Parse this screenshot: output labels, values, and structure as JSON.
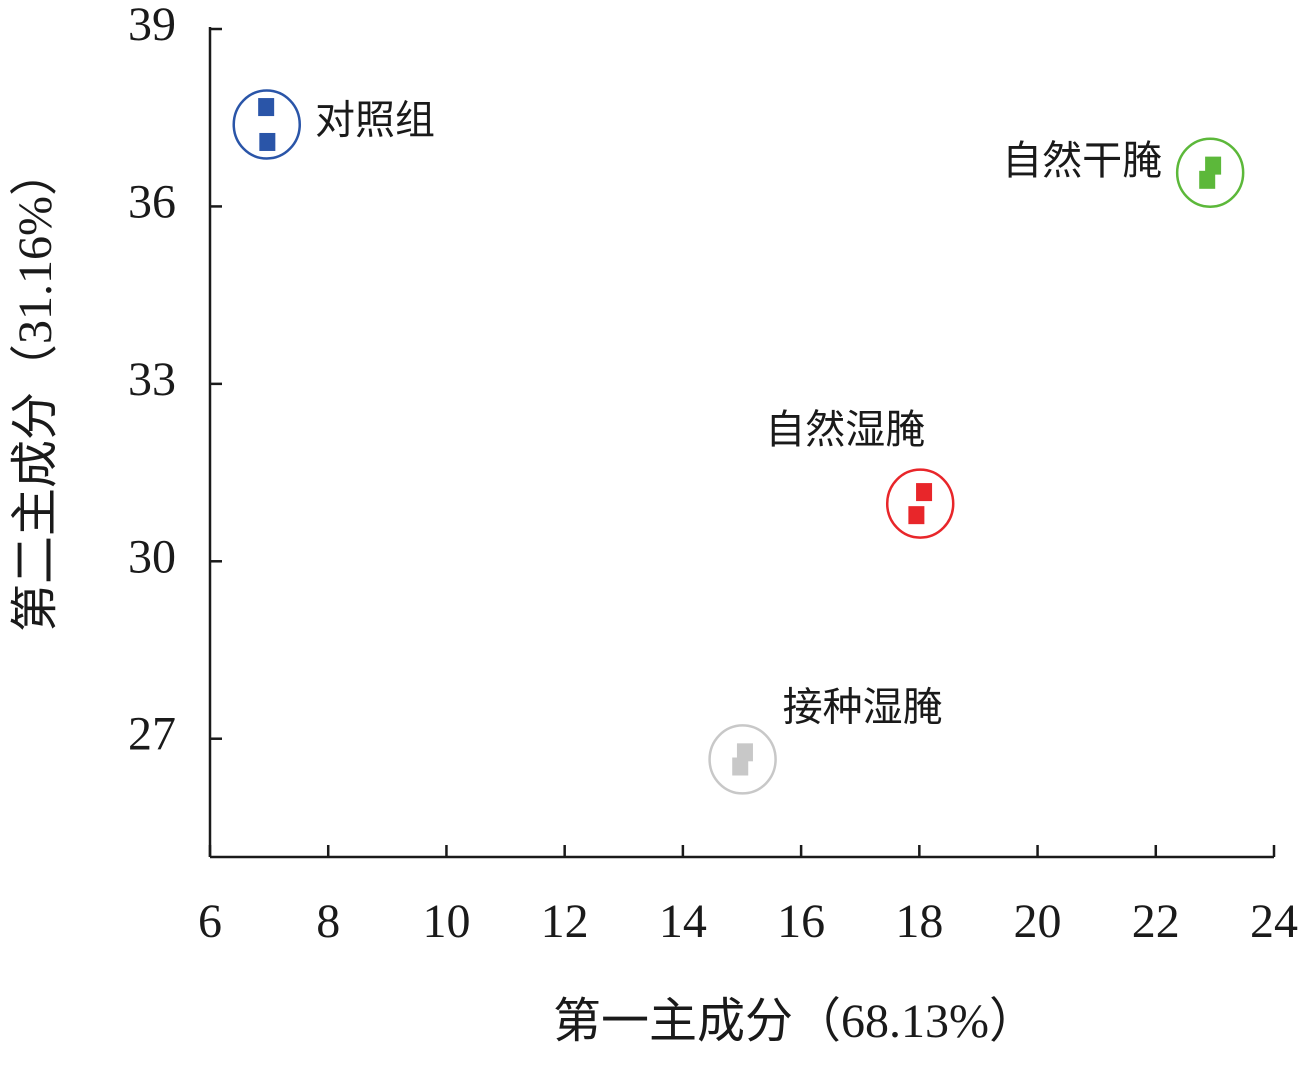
{
  "chart_data": {
    "type": "scatter",
    "x_label": "第一主成分（68.13%）",
    "y_label": "第二主成分（31.16%）",
    "xlim": [
      6,
      24
    ],
    "xticks": [
      6,
      8,
      10,
      12,
      14,
      16,
      18,
      20,
      22,
      24
    ],
    "ylim": [
      25,
      39
    ],
    "yticks": [
      27,
      30,
      33,
      36,
      39
    ],
    "series": [
      {
        "name": "对照组",
        "color": "#2a55a8",
        "x": [
          6.95,
          6.97
        ],
        "y": [
          37.68,
          37.09
        ]
      },
      {
        "name": "自然干腌",
        "color": "#5cb83a",
        "x": [
          22.97,
          22.87
        ],
        "y": [
          36.69,
          36.45
        ]
      },
      {
        "name": "自然湿腌",
        "color": "#e8262a",
        "x": [
          18.08,
          17.95
        ],
        "y": [
          31.17,
          30.78
        ]
      },
      {
        "name": "接种湿腌",
        "color": "#c8c8c8",
        "x": [
          15.05,
          14.97
        ],
        "y": [
          26.77,
          26.53
        ]
      }
    ]
  }
}
